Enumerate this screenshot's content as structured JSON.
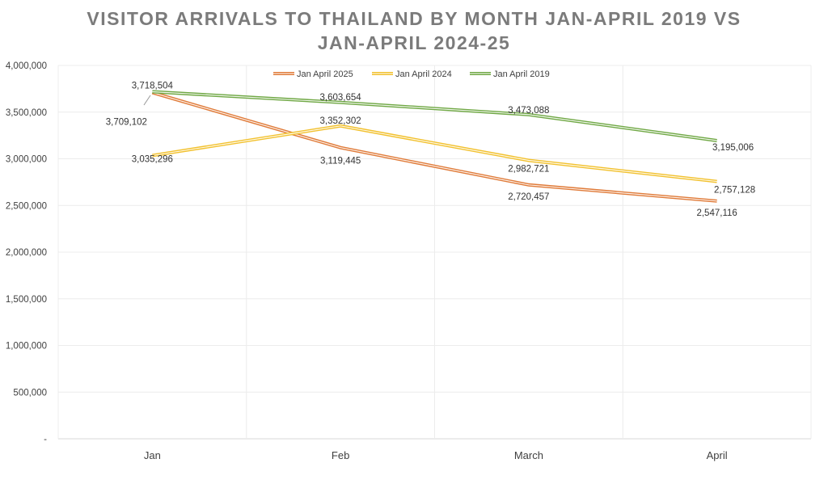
{
  "chart_data": {
    "type": "line",
    "title_line1": "VISITOR ARRIVALS TO THAILAND BY MONTH JAN-APRIL 2019 VS",
    "title_line2": "JAN-APRIL 2024-25",
    "categories": [
      "Jan",
      "Feb",
      "March",
      "April"
    ],
    "ylim": [
      0,
      4000000
    ],
    "yticks": [
      0,
      500000,
      1000000,
      1500000,
      2000000,
      2500000,
      3000000,
      3500000,
      4000000
    ],
    "ytick_labels": [
      "-",
      "500,000",
      "1,000,000",
      "1,500,000",
      "2,000,000",
      "2,500,000",
      "3,000,000",
      "3,500,000",
      "4,000,000"
    ],
    "grid": true,
    "legend_position": "top",
    "series": [
      {
        "name": "Jan April 2025",
        "color": "#e07b39",
        "values": [
          3709102,
          3119445,
          2720457,
          2547116
        ],
        "labels": [
          "3,709,102",
          "3,119,445",
          "2,720,457",
          "2,547,116"
        ]
      },
      {
        "name": "Jan April 2024",
        "color": "#f2c12e",
        "values": [
          3035296,
          3352302,
          2982721,
          2757128
        ],
        "labels": [
          "3,035,296",
          "3,352,302",
          "2,982,721",
          "2,757,128"
        ]
      },
      {
        "name": "Jan April 2019",
        "color": "#70a845",
        "values": [
          3718504,
          3603654,
          3473088,
          3195006
        ],
        "labels": [
          "3,718,504",
          "3,603,654",
          "3,473,088",
          "3,195,006"
        ]
      }
    ]
  }
}
